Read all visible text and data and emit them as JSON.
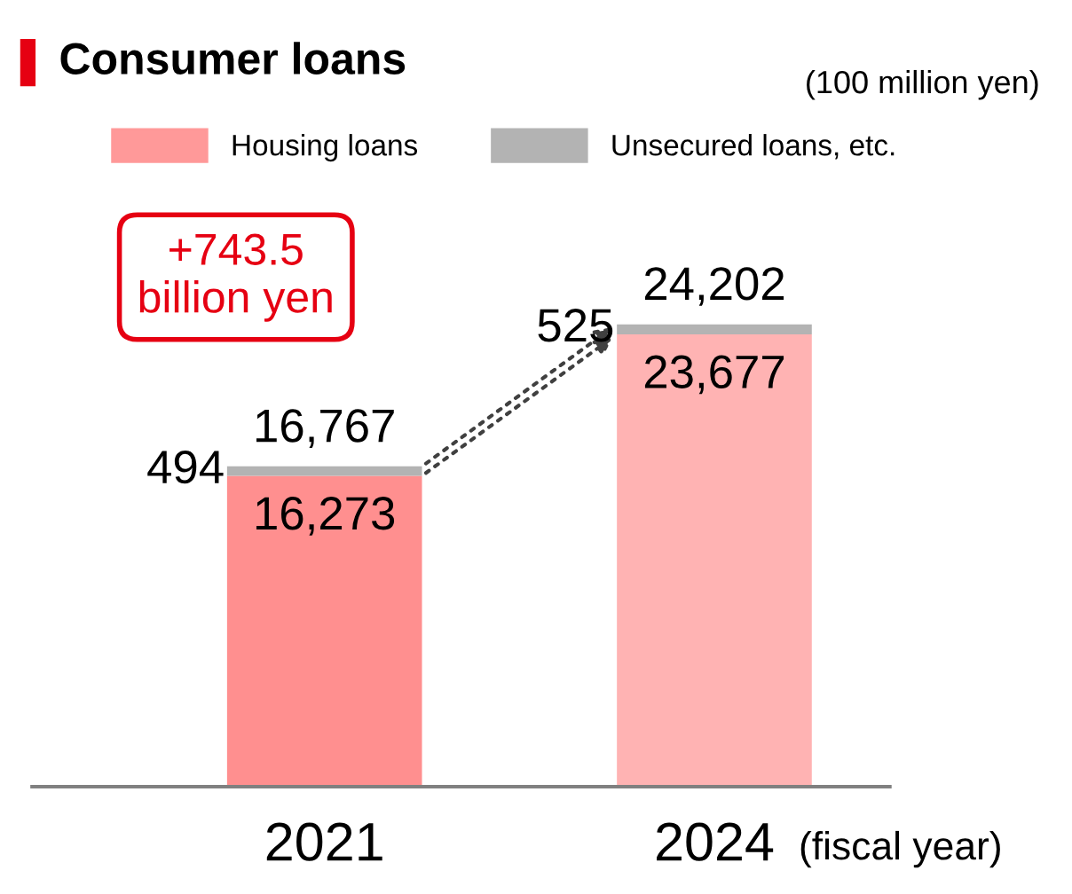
{
  "chart_data": {
    "type": "bar",
    "title": "Consumer loans",
    "stacked": true,
    "categories": [
      "2021",
      "2024"
    ],
    "series": [
      {
        "name": "Housing loans",
        "color": "#ff9999",
        "colors": [
          "#ff8f8f",
          "#ffb3b3"
        ],
        "values": [
          16273,
          23677
        ],
        "value_labels": [
          "16,273",
          "23,677"
        ]
      },
      {
        "name": "Unsecured loans, etc.",
        "color": "#b3b3b3",
        "values": [
          494,
          525
        ],
        "value_labels": [
          "494",
          "525"
        ]
      }
    ],
    "totals": [
      "16,767",
      "24,202"
    ],
    "tick_labels": "x",
    "grid": false,
    "legend": "top left",
    "annotations": [
      "(100 million yen)",
      "+743.5\nbillion yen",
      "(fiscal year)"
    ]
  }
}
